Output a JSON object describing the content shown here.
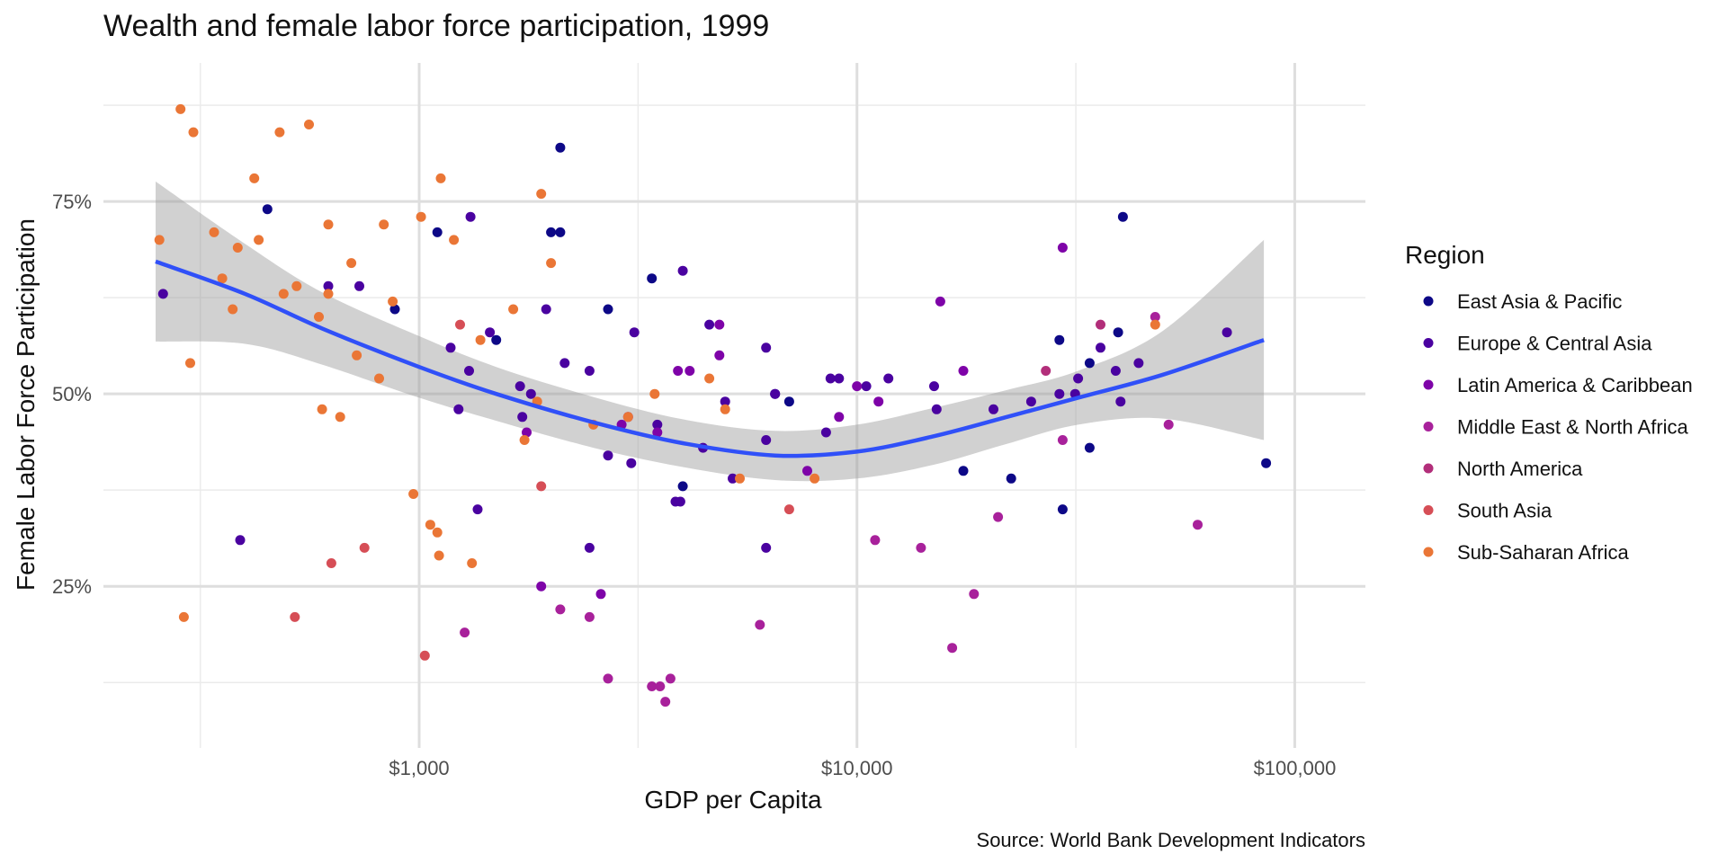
{
  "chart_data": {
    "type": "scatter",
    "title": "Wealth and female labor force participation, 1999",
    "xlabel": "GDP per Capita",
    "ylabel": "Female Labor Force Participation",
    "caption": "Source: World Bank Development Indicators",
    "x_scale": "log10",
    "xlim": [
      190,
      145000
    ],
    "ylim": [
      0.04,
      0.93
    ],
    "x_ticks": [
      {
        "value": 1000,
        "label": "$1,000"
      },
      {
        "value": 10000,
        "label": "$10,000"
      },
      {
        "value": 100000,
        "label": "$100,000"
      }
    ],
    "y_ticks": [
      {
        "value": 0.25,
        "label": "25%"
      },
      {
        "value": 0.5,
        "label": "50%"
      },
      {
        "value": 0.75,
        "label": "75%"
      }
    ],
    "grid": true,
    "legend": {
      "title": "Region",
      "position": "right"
    },
    "smooth": {
      "method": "loess",
      "color": "#3050f8",
      "x": [
        250,
        400,
        600,
        1000,
        1500,
        2500,
        4000,
        6500,
        10000,
        15000,
        22000,
        32000,
        50000,
        85000
      ],
      "y": [
        0.672,
        0.63,
        0.585,
        0.535,
        0.5,
        0.463,
        0.436,
        0.42,
        0.425,
        0.445,
        0.47,
        0.495,
        0.525,
        0.57
      ],
      "ci_lower": [
        0.568,
        0.565,
        0.538,
        0.495,
        0.465,
        0.43,
        0.405,
        0.388,
        0.39,
        0.408,
        0.435,
        0.46,
        0.468,
        0.44
      ],
      "ci_upper": [
        0.776,
        0.695,
        0.632,
        0.575,
        0.535,
        0.496,
        0.467,
        0.452,
        0.46,
        0.482,
        0.505,
        0.53,
        0.582,
        0.7
      ]
    },
    "series": [
      {
        "name": "East Asia & Pacific",
        "color": "#0d0887",
        "points": [
          [
            450,
            0.74
          ],
          [
            880,
            0.61
          ],
          [
            1100,
            0.71
          ],
          [
            1500,
            0.57
          ],
          [
            2000,
            0.71
          ],
          [
            2100,
            0.71
          ],
          [
            2100,
            0.82
          ],
          [
            2700,
            0.61
          ],
          [
            3400,
            0.65
          ],
          [
            4000,
            0.38
          ],
          [
            6500,
            0.5
          ],
          [
            7000,
            0.49
          ],
          [
            17500,
            0.4
          ],
          [
            22500,
            0.39
          ],
          [
            29000,
            0.57
          ],
          [
            29500,
            0.35
          ],
          [
            34000,
            0.43
          ],
          [
            34000,
            0.54
          ],
          [
            39500,
            0.58
          ],
          [
            40500,
            0.73
          ],
          [
            86000,
            0.41
          ]
        ]
      },
      {
        "name": "Europe & Central Asia",
        "color": "#4a02a0",
        "points": [
          [
            260,
            0.63
          ],
          [
            390,
            0.31
          ],
          [
            620,
            0.64
          ],
          [
            730,
            0.64
          ],
          [
            1180,
            0.56
          ],
          [
            1230,
            0.48
          ],
          [
            1300,
            0.53
          ],
          [
            1310,
            0.73
          ],
          [
            1360,
            0.35
          ],
          [
            1450,
            0.58
          ],
          [
            1700,
            0.51
          ],
          [
            1720,
            0.47
          ],
          [
            1800,
            0.5
          ],
          [
            1950,
            0.61
          ],
          [
            2150,
            0.54
          ],
          [
            2450,
            0.53
          ],
          [
            2450,
            0.3
          ],
          [
            2700,
            0.42
          ],
          [
            3050,
            0.41
          ],
          [
            3100,
            0.58
          ],
          [
            3500,
            0.46
          ],
          [
            3850,
            0.36
          ],
          [
            3950,
            0.36
          ],
          [
            4000,
            0.66
          ],
          [
            4450,
            0.43
          ],
          [
            4600,
            0.59
          ],
          [
            5000,
            0.49
          ],
          [
            5200,
            0.39
          ],
          [
            6200,
            0.56
          ],
          [
            6200,
            0.44
          ],
          [
            6200,
            0.3
          ],
          [
            6500,
            0.5
          ],
          [
            8500,
            0.45
          ],
          [
            8700,
            0.52
          ],
          [
            9100,
            0.52
          ],
          [
            10500,
            0.51
          ],
          [
            11800,
            0.52
          ],
          [
            15000,
            0.51
          ],
          [
            15200,
            0.48
          ],
          [
            20500,
            0.48
          ],
          [
            25000,
            0.49
          ],
          [
            29000,
            0.5
          ],
          [
            31500,
            0.5
          ],
          [
            32000,
            0.52
          ],
          [
            36000,
            0.56
          ],
          [
            39000,
            0.53
          ],
          [
            40000,
            0.49
          ],
          [
            44000,
            0.54
          ],
          [
            70000,
            0.58
          ]
        ]
      },
      {
        "name": "Latin America & Caribbean",
        "color": "#7e03a8",
        "points": [
          [
            1760,
            0.45
          ],
          [
            1900,
            0.25
          ],
          [
            2600,
            0.24
          ],
          [
            2900,
            0.46
          ],
          [
            3000,
            0.47
          ],
          [
            3500,
            0.45
          ],
          [
            3900,
            0.53
          ],
          [
            4150,
            0.53
          ],
          [
            4850,
            0.59
          ],
          [
            4850,
            0.55
          ],
          [
            7700,
            0.4
          ],
          [
            9100,
            0.47
          ],
          [
            10000,
            0.51
          ],
          [
            11200,
            0.49
          ],
          [
            15500,
            0.62
          ],
          [
            17500,
            0.53
          ],
          [
            29500,
            0.69
          ]
        ]
      },
      {
        "name": "Middle East & North Africa",
        "color": "#a8219b",
        "points": [
          [
            1270,
            0.19
          ],
          [
            2100,
            0.22
          ],
          [
            2450,
            0.21
          ],
          [
            2700,
            0.13
          ],
          [
            3400,
            0.12
          ],
          [
            3550,
            0.12
          ],
          [
            3650,
            0.1
          ],
          [
            3750,
            0.13
          ],
          [
            6000,
            0.2
          ],
          [
            11000,
            0.31
          ],
          [
            14000,
            0.3
          ],
          [
            16500,
            0.17
          ],
          [
            18500,
            0.24
          ],
          [
            21000,
            0.34
          ],
          [
            29500,
            0.44
          ],
          [
            48000,
            0.6
          ],
          [
            51500,
            0.46
          ],
          [
            60000,
            0.33
          ]
        ]
      },
      {
        "name": "North America",
        "color": "#b22e7a",
        "points": [
          [
            27000,
            0.53
          ],
          [
            36000,
            0.59
          ]
        ]
      },
      {
        "name": "South Asia",
        "color": "#d64e56",
        "points": [
          [
            520,
            0.21
          ],
          [
            630,
            0.28
          ],
          [
            750,
            0.3
          ],
          [
            1030,
            0.16
          ],
          [
            1240,
            0.59
          ],
          [
            1900,
            0.38
          ],
          [
            7000,
            0.35
          ]
        ]
      },
      {
        "name": "Sub-Saharan Africa",
        "color": "#ea7636",
        "points": [
          [
            255,
            0.7
          ],
          [
            285,
            0.87
          ],
          [
            290,
            0.21
          ],
          [
            300,
            0.54
          ],
          [
            305,
            0.84
          ],
          [
            340,
            0.71
          ],
          [
            355,
            0.65
          ],
          [
            375,
            0.61
          ],
          [
            385,
            0.69
          ],
          [
            420,
            0.78
          ],
          [
            430,
            0.7
          ],
          [
            480,
            0.84
          ],
          [
            490,
            0.63
          ],
          [
            525,
            0.64
          ],
          [
            560,
            0.85
          ],
          [
            590,
            0.6
          ],
          [
            600,
            0.48
          ],
          [
            620,
            0.72
          ],
          [
            620,
            0.63
          ],
          [
            660,
            0.47
          ],
          [
            700,
            0.67
          ],
          [
            720,
            0.55
          ],
          [
            810,
            0.52
          ],
          [
            830,
            0.72
          ],
          [
            870,
            0.62
          ],
          [
            970,
            0.37
          ],
          [
            1010,
            0.73
          ],
          [
            1060,
            0.33
          ],
          [
            1100,
            0.32
          ],
          [
            1110,
            0.29
          ],
          [
            1120,
            0.78
          ],
          [
            1200,
            0.7
          ],
          [
            1320,
            0.28
          ],
          [
            1380,
            0.57
          ],
          [
            1640,
            0.61
          ],
          [
            1740,
            0.44
          ],
          [
            1860,
            0.49
          ],
          [
            1900,
            0.76
          ],
          [
            2000,
            0.67
          ],
          [
            2500,
            0.46
          ],
          [
            3000,
            0.47
          ],
          [
            3450,
            0.5
          ],
          [
            4600,
            0.52
          ],
          [
            5000,
            0.48
          ],
          [
            5400,
            0.39
          ],
          [
            8000,
            0.39
          ],
          [
            48000,
            0.59
          ]
        ]
      }
    ]
  }
}
